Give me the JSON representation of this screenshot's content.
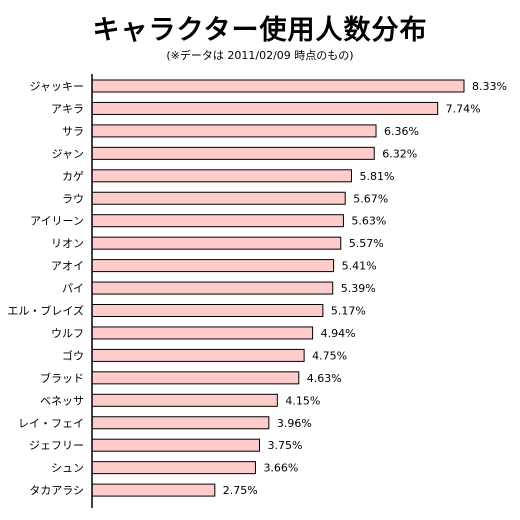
{
  "chart_data": {
    "type": "bar",
    "orientation": "horizontal",
    "title": "キャラクター使用人数分布",
    "subtitle": "(※データは 2011/02/09 時点のもの)",
    "xlabel": "",
    "ylabel": "",
    "unit": "%",
    "grid": false,
    "legend": "none",
    "xlim": [
      0,
      8.5
    ],
    "categories": [
      "ジャッキー",
      "アキラ",
      "サラ",
      "ジャン",
      "カゲ",
      "ラウ",
      "アイリーン",
      "リオン",
      "アオイ",
      "パイ",
      "エル・ブレイズ",
      "ウルフ",
      "ゴウ",
      "ブラッド",
      "ベネッサ",
      "レイ・フェイ",
      "ジェフリー",
      "シュン",
      "タカアラシ"
    ],
    "values": [
      8.33,
      7.74,
      6.36,
      6.32,
      5.81,
      5.67,
      5.63,
      5.57,
      5.41,
      5.39,
      5.17,
      4.94,
      4.75,
      4.63,
      4.15,
      3.96,
      3.75,
      3.66,
      2.75
    ],
    "value_labels": [
      "8.33%",
      "7.74%",
      "6.36%",
      "6.32%",
      "5.81%",
      "5.67%",
      "5.63%",
      "5.57%",
      "5.41%",
      "5.39%",
      "5.17%",
      "4.94%",
      "4.75%",
      "4.63%",
      "4.15%",
      "3.96%",
      "3.75%",
      "3.66%",
      "2.75%"
    ],
    "colors": {
      "bar_fill": "#ffcccc",
      "bar_stroke": "#000000",
      "axis": "#000000"
    }
  }
}
